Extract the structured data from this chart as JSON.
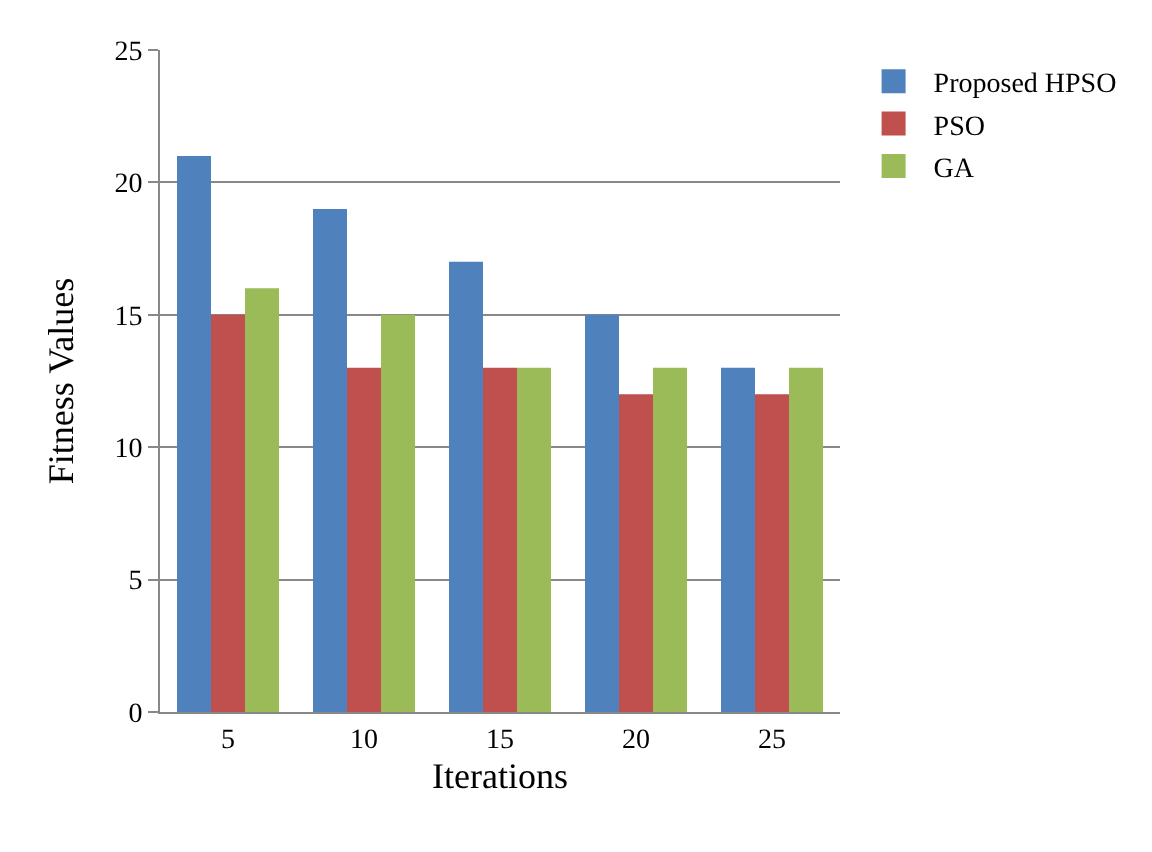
{
  "chart_data": {
    "type": "bar",
    "xlabel": "Iterations",
    "ylabel": "Fitness Values",
    "categories": [
      "5",
      "10",
      "15",
      "20",
      "25"
    ],
    "series": [
      {
        "name": "Proposed HPSO",
        "color": "#4f81bd",
        "values": [
          21,
          19,
          17,
          15,
          13
        ]
      },
      {
        "name": "PSO",
        "color": "#c0504d",
        "values": [
          15,
          13,
          13,
          12,
          12
        ]
      },
      {
        "name": "GA",
        "color": "#9bbb59",
        "values": [
          16,
          15,
          13,
          13,
          13
        ]
      }
    ],
    "ylim": [
      0,
      25
    ],
    "yticks": [
      0,
      5,
      10,
      15,
      20,
      25
    ],
    "grid": "y",
    "legend": "top right"
  }
}
